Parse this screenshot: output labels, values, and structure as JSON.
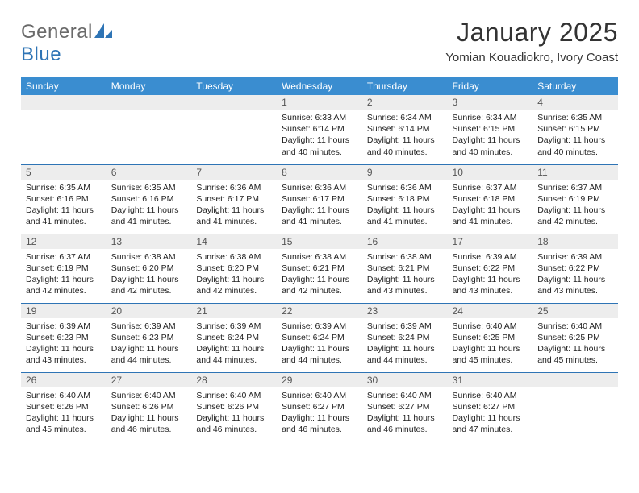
{
  "brand": {
    "part1": "General",
    "part2": "Blue"
  },
  "title": "January 2025",
  "location": "Yomian Kouadiokro, Ivory Coast",
  "colors": {
    "header_bg": "#3a8dd0",
    "header_text": "#ffffff",
    "daynum_bg": "#ededed",
    "rule": "#2e74b5",
    "brand_blue": "#2e74b5",
    "brand_gray": "#6a6a6a"
  },
  "fonts": {
    "title_size": 32,
    "location_size": 15,
    "weekday_size": 12,
    "body_size": 10.5
  },
  "weekdays": [
    "Sunday",
    "Monday",
    "Tuesday",
    "Wednesday",
    "Thursday",
    "Friday",
    "Saturday"
  ],
  "weeks": [
    [
      null,
      null,
      null,
      {
        "n": "1",
        "sr": "Sunrise: 6:33 AM",
        "ss": "Sunset: 6:14 PM",
        "d1": "Daylight: 11 hours",
        "d2": "and 40 minutes."
      },
      {
        "n": "2",
        "sr": "Sunrise: 6:34 AM",
        "ss": "Sunset: 6:14 PM",
        "d1": "Daylight: 11 hours",
        "d2": "and 40 minutes."
      },
      {
        "n": "3",
        "sr": "Sunrise: 6:34 AM",
        "ss": "Sunset: 6:15 PM",
        "d1": "Daylight: 11 hours",
        "d2": "and 40 minutes."
      },
      {
        "n": "4",
        "sr": "Sunrise: 6:35 AM",
        "ss": "Sunset: 6:15 PM",
        "d1": "Daylight: 11 hours",
        "d2": "and 40 minutes."
      }
    ],
    [
      {
        "n": "5",
        "sr": "Sunrise: 6:35 AM",
        "ss": "Sunset: 6:16 PM",
        "d1": "Daylight: 11 hours",
        "d2": "and 41 minutes."
      },
      {
        "n": "6",
        "sr": "Sunrise: 6:35 AM",
        "ss": "Sunset: 6:16 PM",
        "d1": "Daylight: 11 hours",
        "d2": "and 41 minutes."
      },
      {
        "n": "7",
        "sr": "Sunrise: 6:36 AM",
        "ss": "Sunset: 6:17 PM",
        "d1": "Daylight: 11 hours",
        "d2": "and 41 minutes."
      },
      {
        "n": "8",
        "sr": "Sunrise: 6:36 AM",
        "ss": "Sunset: 6:17 PM",
        "d1": "Daylight: 11 hours",
        "d2": "and 41 minutes."
      },
      {
        "n": "9",
        "sr": "Sunrise: 6:36 AM",
        "ss": "Sunset: 6:18 PM",
        "d1": "Daylight: 11 hours",
        "d2": "and 41 minutes."
      },
      {
        "n": "10",
        "sr": "Sunrise: 6:37 AM",
        "ss": "Sunset: 6:18 PM",
        "d1": "Daylight: 11 hours",
        "d2": "and 41 minutes."
      },
      {
        "n": "11",
        "sr": "Sunrise: 6:37 AM",
        "ss": "Sunset: 6:19 PM",
        "d1": "Daylight: 11 hours",
        "d2": "and 42 minutes."
      }
    ],
    [
      {
        "n": "12",
        "sr": "Sunrise: 6:37 AM",
        "ss": "Sunset: 6:19 PM",
        "d1": "Daylight: 11 hours",
        "d2": "and 42 minutes."
      },
      {
        "n": "13",
        "sr": "Sunrise: 6:38 AM",
        "ss": "Sunset: 6:20 PM",
        "d1": "Daylight: 11 hours",
        "d2": "and 42 minutes."
      },
      {
        "n": "14",
        "sr": "Sunrise: 6:38 AM",
        "ss": "Sunset: 6:20 PM",
        "d1": "Daylight: 11 hours",
        "d2": "and 42 minutes."
      },
      {
        "n": "15",
        "sr": "Sunrise: 6:38 AM",
        "ss": "Sunset: 6:21 PM",
        "d1": "Daylight: 11 hours",
        "d2": "and 42 minutes."
      },
      {
        "n": "16",
        "sr": "Sunrise: 6:38 AM",
        "ss": "Sunset: 6:21 PM",
        "d1": "Daylight: 11 hours",
        "d2": "and 43 minutes."
      },
      {
        "n": "17",
        "sr": "Sunrise: 6:39 AM",
        "ss": "Sunset: 6:22 PM",
        "d1": "Daylight: 11 hours",
        "d2": "and 43 minutes."
      },
      {
        "n": "18",
        "sr": "Sunrise: 6:39 AM",
        "ss": "Sunset: 6:22 PM",
        "d1": "Daylight: 11 hours",
        "d2": "and 43 minutes."
      }
    ],
    [
      {
        "n": "19",
        "sr": "Sunrise: 6:39 AM",
        "ss": "Sunset: 6:23 PM",
        "d1": "Daylight: 11 hours",
        "d2": "and 43 minutes."
      },
      {
        "n": "20",
        "sr": "Sunrise: 6:39 AM",
        "ss": "Sunset: 6:23 PM",
        "d1": "Daylight: 11 hours",
        "d2": "and 44 minutes."
      },
      {
        "n": "21",
        "sr": "Sunrise: 6:39 AM",
        "ss": "Sunset: 6:24 PM",
        "d1": "Daylight: 11 hours",
        "d2": "and 44 minutes."
      },
      {
        "n": "22",
        "sr": "Sunrise: 6:39 AM",
        "ss": "Sunset: 6:24 PM",
        "d1": "Daylight: 11 hours",
        "d2": "and 44 minutes."
      },
      {
        "n": "23",
        "sr": "Sunrise: 6:39 AM",
        "ss": "Sunset: 6:24 PM",
        "d1": "Daylight: 11 hours",
        "d2": "and 44 minutes."
      },
      {
        "n": "24",
        "sr": "Sunrise: 6:40 AM",
        "ss": "Sunset: 6:25 PM",
        "d1": "Daylight: 11 hours",
        "d2": "and 45 minutes."
      },
      {
        "n": "25",
        "sr": "Sunrise: 6:40 AM",
        "ss": "Sunset: 6:25 PM",
        "d1": "Daylight: 11 hours",
        "d2": "and 45 minutes."
      }
    ],
    [
      {
        "n": "26",
        "sr": "Sunrise: 6:40 AM",
        "ss": "Sunset: 6:26 PM",
        "d1": "Daylight: 11 hours",
        "d2": "and 45 minutes."
      },
      {
        "n": "27",
        "sr": "Sunrise: 6:40 AM",
        "ss": "Sunset: 6:26 PM",
        "d1": "Daylight: 11 hours",
        "d2": "and 46 minutes."
      },
      {
        "n": "28",
        "sr": "Sunrise: 6:40 AM",
        "ss": "Sunset: 6:26 PM",
        "d1": "Daylight: 11 hours",
        "d2": "and 46 minutes."
      },
      {
        "n": "29",
        "sr": "Sunrise: 6:40 AM",
        "ss": "Sunset: 6:27 PM",
        "d1": "Daylight: 11 hours",
        "d2": "and 46 minutes."
      },
      {
        "n": "30",
        "sr": "Sunrise: 6:40 AM",
        "ss": "Sunset: 6:27 PM",
        "d1": "Daylight: 11 hours",
        "d2": "and 46 minutes."
      },
      {
        "n": "31",
        "sr": "Sunrise: 6:40 AM",
        "ss": "Sunset: 6:27 PM",
        "d1": "Daylight: 11 hours",
        "d2": "and 47 minutes."
      },
      null
    ]
  ]
}
